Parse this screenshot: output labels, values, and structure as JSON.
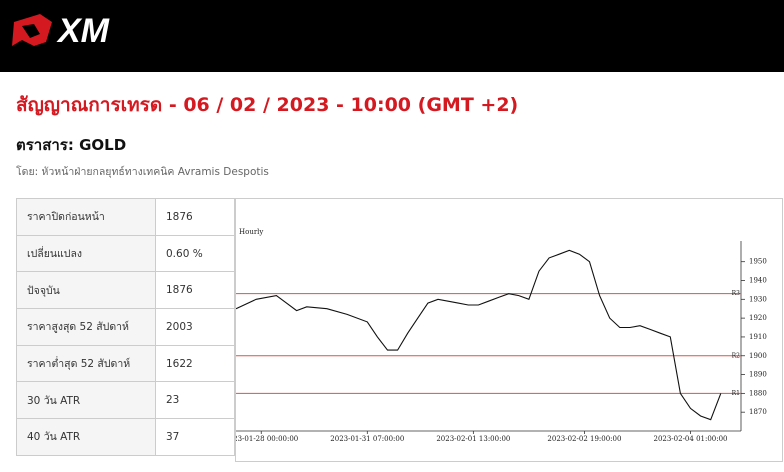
{
  "header": {
    "logo": "XM"
  },
  "title": "สัญญาณการเทรด - 06 / 02 / 2023 - 10:00 (GMT +2)",
  "instrument": "ตราสาร: GOLD",
  "author": "โดย: หัวหน้าฝ่ายกลยุทธ์ทางเทคนิค Avramis Despotis",
  "table": {
    "rows": [
      [
        "ราคาปิดก่อนหน้า",
        "1876"
      ],
      [
        "เปลี่ยนแปลง",
        "0.60 %"
      ],
      [
        "ปัจจุบัน",
        "1876"
      ],
      [
        "ราคาสูงสุด 52 สัปดาห์",
        "2003"
      ],
      [
        "ราคาต่ำสุด 52 สัปดาห์",
        "1622"
      ],
      [
        "30 วัน ATR",
        "23"
      ],
      [
        "40 วัน ATR",
        "37"
      ]
    ]
  },
  "chart_data": {
    "type": "line",
    "title": "Hourly",
    "xlim": [
      0,
      100
    ],
    "ylim": [
      1860,
      1961
    ],
    "yticks": [
      1870,
      1880,
      1890,
      1900,
      1910,
      1920,
      1930,
      1940,
      1950
    ],
    "xticks": [
      {
        "value": 5,
        "label": "2023-01-28 00:00:00"
      },
      {
        "value": 26,
        "label": "2023-01-31 07:00:00"
      },
      {
        "value": 47,
        "label": "2023-02-01 13:00:00"
      },
      {
        "value": 69,
        "label": "2023-02-02 19:00:00"
      },
      {
        "value": 90,
        "label": "2023-02-04 01:00:00"
      }
    ],
    "x": [
      0,
      4,
      8,
      10,
      12,
      14,
      18,
      22,
      26,
      28,
      30,
      32,
      34,
      36,
      38,
      40,
      42,
      44,
      46,
      48,
      50,
      52,
      54,
      56,
      58,
      60,
      62,
      64,
      66,
      68,
      70,
      72,
      74,
      76,
      78,
      80,
      82,
      84,
      86,
      88,
      90,
      92,
      94,
      96
    ],
    "series": [
      {
        "color": "#111111",
        "values": [
          1925,
          1930,
          1932,
          1928,
          1924,
          1926,
          1925,
          1922,
          1918,
          1910,
          1903,
          1903,
          1912,
          1920,
          1928,
          1930,
          1929,
          1928,
          1927,
          1927,
          1929,
          1931,
          1933,
          1932,
          1930,
          1945,
          1952,
          1954,
          1956,
          1954,
          1950,
          1932,
          1920,
          1915,
          1915,
          1916,
          1914,
          1912,
          1910,
          1880,
          1872,
          1868,
          1866,
          1880
        ]
      }
    ],
    "levels": [
      {
        "name": "R3",
        "value": 1933
      },
      {
        "name": "R2",
        "value": 1900
      },
      {
        "name": "R1",
        "value": 1880
      }
    ],
    "level_color": "#d9534f",
    "grid": false
  }
}
